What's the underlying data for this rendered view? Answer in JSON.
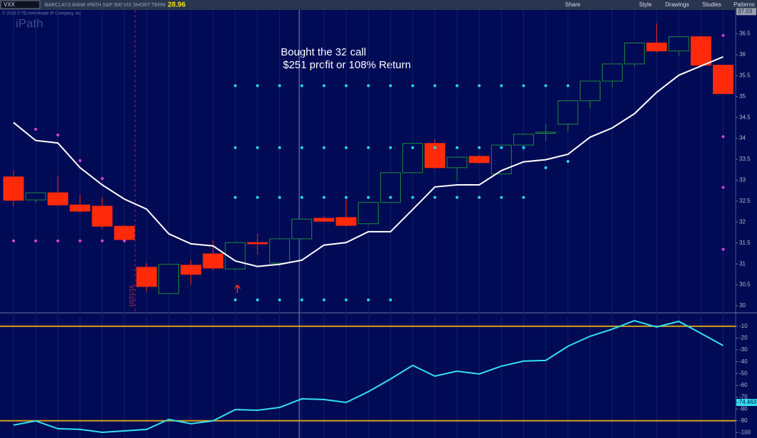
{
  "header": {
    "symbol": "VXX",
    "description": "BARCLAYS BANK IPATH S&P 500 VIX SHORT TERM",
    "last": "28.96",
    "buttons": [
      "Share",
      "Style",
      "Drawings",
      "Studies",
      "Patterns"
    ],
    "copyright": "© 2016 © TD Ameritrade IP Company, Inc",
    "logo": "iPath"
  },
  "chart_data": [
    {
      "type": "candlestick",
      "open": [
        33.08,
        32.53,
        32.7,
        32.41,
        32.38,
        31.9,
        30.92,
        30.29,
        30.97,
        31.24,
        30.88,
        31.51,
        31.02,
        31.6,
        32.09,
        32.11,
        31.96,
        32.47,
        33.18,
        33.88,
        33.3,
        33.57,
        33.15,
        33.84,
        34.12,
        34.34,
        34.9,
        35.37,
        35.78,
        36.28,
        36.09,
        36.43,
        35.75
      ],
      "high": [
        33.23,
        32.72,
        33.11,
        32.65,
        32.59,
        31.93,
        31.02,
        31.0,
        31.1,
        31.56,
        31.52,
        31.73,
        31.62,
        32.08,
        32.14,
        32.62,
        32.48,
        33.19,
        33.89,
        33.98,
        33.56,
        33.6,
        33.85,
        34.11,
        34.34,
        34.91,
        35.38,
        35.79,
        36.29,
        36.75,
        36.44,
        36.44,
        35.76
      ],
      "low": [
        32.38,
        32.47,
        32.38,
        32.23,
        31.84,
        31.53,
        30.34,
        30.28,
        30.5,
        30.85,
        30.85,
        31.22,
        30.94,
        31.59,
        32.0,
        31.9,
        31.93,
        32.46,
        33.17,
        33.27,
        32.98,
        33.4,
        33.14,
        33.7,
        33.94,
        34.16,
        34.72,
        35.22,
        35.71,
        36.05,
        35.97,
        35.73,
        35.06
      ],
      "close": [
        32.52,
        32.7,
        32.41,
        32.26,
        31.9,
        31.58,
        30.46,
        30.99,
        30.75,
        30.9,
        31.51,
        31.48,
        31.6,
        32.07,
        32.02,
        31.92,
        32.47,
        33.18,
        33.88,
        33.3,
        33.55,
        33.42,
        33.84,
        34.1,
        34.15,
        34.9,
        35.37,
        35.78,
        36.28,
        36.09,
        36.43,
        35.75,
        35.07
      ],
      "up_color": "#1f8a3c",
      "down_color": "#ff2a0a",
      "series": [
        {
          "marker": "line",
          "color": "#ffffff",
          "values": [
            34.38,
            33.95,
            33.89,
            33.3,
            32.89,
            32.55,
            32.31,
            31.72,
            31.48,
            31.43,
            31.07,
            30.94,
            30.99,
            31.09,
            31.45,
            31.51,
            31.77,
            31.77,
            32.3,
            32.84,
            32.89,
            32.89,
            33.23,
            33.44,
            33.49,
            33.62,
            34.03,
            34.25,
            34.59,
            35.1,
            35.51,
            35.73,
            35.95
          ]
        },
        {
          "marker": "dot",
          "color": "#e040e0",
          "values": [
            31.55,
            31.55,
            31.55,
            31.55,
            31.55,
            31.55,
            null,
            null,
            null,
            null,
            null,
            null,
            null,
            null,
            null,
            null,
            null,
            null,
            null,
            null,
            null,
            null,
            null,
            null,
            null,
            null,
            null,
            null,
            null,
            null,
            null,
            null,
            31.35
          ]
        },
        {
          "marker": "dot",
          "color": "#e040e0",
          "values": [
            null,
            34.22,
            34.08,
            33.47,
            33.04,
            null,
            null,
            null,
            null,
            null,
            null,
            null,
            null,
            null,
            null,
            null,
            null,
            null,
            null,
            null,
            null,
            null,
            null,
            null,
            null,
            null,
            null,
            null,
            null,
            null,
            null,
            null,
            32.83
          ]
        },
        {
          "marker": "dot",
          "color": "#e040e0",
          "values": [
            null,
            null,
            null,
            null,
            null,
            null,
            null,
            null,
            null,
            null,
            null,
            null,
            null,
            null,
            null,
            null,
            null,
            null,
            null,
            null,
            null,
            null,
            null,
            null,
            null,
            null,
            null,
            null,
            null,
            null,
            null,
            null,
            34.04
          ]
        },
        {
          "marker": "dot",
          "color": "#e040e0",
          "values": [
            null,
            null,
            null,
            null,
            null,
            null,
            null,
            null,
            null,
            null,
            null,
            null,
            null,
            null,
            null,
            null,
            null,
            null,
            null,
            null,
            null,
            null,
            null,
            null,
            null,
            null,
            null,
            null,
            null,
            null,
            null,
            null,
            36.46
          ]
        },
        {
          "marker": "dot",
          "color": "#22d8f0",
          "values": [
            null,
            null,
            null,
            null,
            null,
            null,
            null,
            null,
            null,
            null,
            35.26,
            35.26,
            35.26,
            35.26,
            35.26,
            35.26,
            35.26,
            35.26,
            35.26,
            35.26,
            35.26,
            35.26,
            35.26,
            35.26,
            35.26,
            35.26,
            null,
            null,
            null,
            null,
            null,
            null,
            null
          ]
        },
        {
          "marker": "dot",
          "color": "#22d8f0",
          "values": [
            null,
            null,
            null,
            null,
            null,
            null,
            null,
            null,
            null,
            null,
            33.78,
            33.78,
            33.78,
            33.78,
            33.78,
            33.78,
            33.78,
            33.78,
            33.78,
            33.78,
            33.78,
            33.78,
            33.78,
            33.78,
            33.3,
            33.45,
            null,
            null,
            null,
            null,
            null,
            null,
            null
          ]
        },
        {
          "marker": "dot",
          "color": "#22d8f0",
          "values": [
            null,
            null,
            null,
            null,
            null,
            null,
            null,
            null,
            null,
            null,
            32.59,
            32.59,
            32.59,
            32.59,
            32.59,
            32.59,
            32.59,
            32.59,
            32.59,
            32.59,
            32.59,
            32.59,
            32.59,
            32.59,
            null,
            null,
            null,
            null,
            null,
            null,
            null,
            null,
            null
          ]
        },
        {
          "marker": "dot",
          "color": "#22d8f0",
          "values": [
            null,
            null,
            null,
            null,
            null,
            null,
            null,
            null,
            null,
            null,
            30.14,
            30.14,
            30.14,
            30.14,
            30.14,
            30.14,
            30.14,
            30.14,
            null,
            null,
            null,
            null,
            null,
            null,
            null,
            null,
            null,
            null,
            null,
            null,
            null,
            null,
            null
          ]
        }
      ],
      "ylim": [
        29.83,
        37.07
      ],
      "yticks": [
        30,
        30.5,
        31,
        31.5,
        32,
        32.5,
        33,
        33.5,
        34,
        34.5,
        35,
        35.5,
        36,
        36.5
      ],
      "top_label": 37.03,
      "annotations": [
        "Bought the 32 call",
        "$251 profit or 108% Return"
      ],
      "date_label": "10/21/16"
    },
    {
      "type": "line",
      "series": [
        {
          "color": "#33e0f0",
          "values": [
            -93.7,
            -90.1,
            -96.7,
            -97.3,
            -99.8,
            -98.6,
            -97.3,
            -88.9,
            -92.5,
            -90.1,
            -80.5,
            -81.1,
            -78.7,
            -71.4,
            -72.0,
            -74.5,
            -65.4,
            -54.6,
            -43.1,
            -52.2,
            -48.0,
            -50.4,
            -43.7,
            -39.5,
            -38.9,
            -26.9,
            -18.4,
            -12.4,
            -5.2,
            -10.6,
            -5.8,
            -16.0,
            -26.3
          ]
        }
      ],
      "ylim": [
        -104.6,
        1.4
      ],
      "yticks": [
        -100,
        -90,
        -80,
        -70,
        -60,
        -50,
        -40,
        -30,
        -20,
        -10
      ],
      "hlines": [
        -10,
        -90
      ],
      "hline_color": "#d4a017",
      "current_value": -74.463
    }
  ]
}
